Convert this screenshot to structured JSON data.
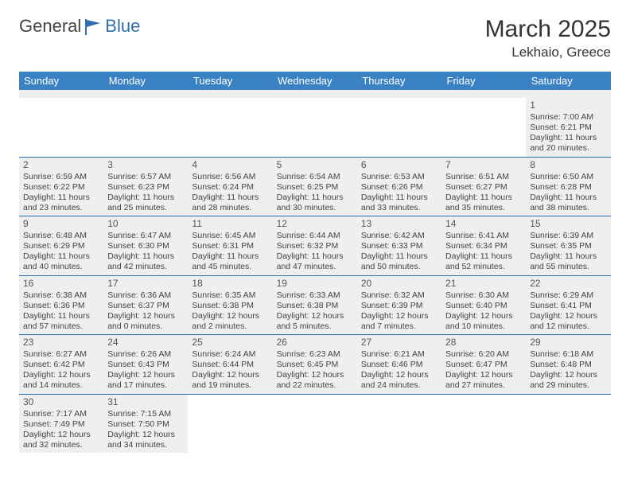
{
  "brand": {
    "part1": "General",
    "part2": "Blue"
  },
  "title": "March 2025",
  "location": "Lekhaio, Greece",
  "colors": {
    "header_bg": "#3b82c4",
    "header_text": "#ffffff",
    "cell_bg": "#efefef",
    "rule": "#2f6fb0",
    "brand_blue": "#2f6fb0"
  },
  "daynames": [
    "Sunday",
    "Monday",
    "Tuesday",
    "Wednesday",
    "Thursday",
    "Friday",
    "Saturday"
  ],
  "weeks": [
    [
      null,
      null,
      null,
      null,
      null,
      null,
      {
        "n": "1",
        "sr": "Sunrise: 7:00 AM",
        "ss": "Sunset: 6:21 PM",
        "d1": "Daylight: 11 hours",
        "d2": "and 20 minutes."
      }
    ],
    [
      {
        "n": "2",
        "sr": "Sunrise: 6:59 AM",
        "ss": "Sunset: 6:22 PM",
        "d1": "Daylight: 11 hours",
        "d2": "and 23 minutes."
      },
      {
        "n": "3",
        "sr": "Sunrise: 6:57 AM",
        "ss": "Sunset: 6:23 PM",
        "d1": "Daylight: 11 hours",
        "d2": "and 25 minutes."
      },
      {
        "n": "4",
        "sr": "Sunrise: 6:56 AM",
        "ss": "Sunset: 6:24 PM",
        "d1": "Daylight: 11 hours",
        "d2": "and 28 minutes."
      },
      {
        "n": "5",
        "sr": "Sunrise: 6:54 AM",
        "ss": "Sunset: 6:25 PM",
        "d1": "Daylight: 11 hours",
        "d2": "and 30 minutes."
      },
      {
        "n": "6",
        "sr": "Sunrise: 6:53 AM",
        "ss": "Sunset: 6:26 PM",
        "d1": "Daylight: 11 hours",
        "d2": "and 33 minutes."
      },
      {
        "n": "7",
        "sr": "Sunrise: 6:51 AM",
        "ss": "Sunset: 6:27 PM",
        "d1": "Daylight: 11 hours",
        "d2": "and 35 minutes."
      },
      {
        "n": "8",
        "sr": "Sunrise: 6:50 AM",
        "ss": "Sunset: 6:28 PM",
        "d1": "Daylight: 11 hours",
        "d2": "and 38 minutes."
      }
    ],
    [
      {
        "n": "9",
        "sr": "Sunrise: 6:48 AM",
        "ss": "Sunset: 6:29 PM",
        "d1": "Daylight: 11 hours",
        "d2": "and 40 minutes."
      },
      {
        "n": "10",
        "sr": "Sunrise: 6:47 AM",
        "ss": "Sunset: 6:30 PM",
        "d1": "Daylight: 11 hours",
        "d2": "and 42 minutes."
      },
      {
        "n": "11",
        "sr": "Sunrise: 6:45 AM",
        "ss": "Sunset: 6:31 PM",
        "d1": "Daylight: 11 hours",
        "d2": "and 45 minutes."
      },
      {
        "n": "12",
        "sr": "Sunrise: 6:44 AM",
        "ss": "Sunset: 6:32 PM",
        "d1": "Daylight: 11 hours",
        "d2": "and 47 minutes."
      },
      {
        "n": "13",
        "sr": "Sunrise: 6:42 AM",
        "ss": "Sunset: 6:33 PM",
        "d1": "Daylight: 11 hours",
        "d2": "and 50 minutes."
      },
      {
        "n": "14",
        "sr": "Sunrise: 6:41 AM",
        "ss": "Sunset: 6:34 PM",
        "d1": "Daylight: 11 hours",
        "d2": "and 52 minutes."
      },
      {
        "n": "15",
        "sr": "Sunrise: 6:39 AM",
        "ss": "Sunset: 6:35 PM",
        "d1": "Daylight: 11 hours",
        "d2": "and 55 minutes."
      }
    ],
    [
      {
        "n": "16",
        "sr": "Sunrise: 6:38 AM",
        "ss": "Sunset: 6:36 PM",
        "d1": "Daylight: 11 hours",
        "d2": "and 57 minutes."
      },
      {
        "n": "17",
        "sr": "Sunrise: 6:36 AM",
        "ss": "Sunset: 6:37 PM",
        "d1": "Daylight: 12 hours",
        "d2": "and 0 minutes."
      },
      {
        "n": "18",
        "sr": "Sunrise: 6:35 AM",
        "ss": "Sunset: 6:38 PM",
        "d1": "Daylight: 12 hours",
        "d2": "and 2 minutes."
      },
      {
        "n": "19",
        "sr": "Sunrise: 6:33 AM",
        "ss": "Sunset: 6:38 PM",
        "d1": "Daylight: 12 hours",
        "d2": "and 5 minutes."
      },
      {
        "n": "20",
        "sr": "Sunrise: 6:32 AM",
        "ss": "Sunset: 6:39 PM",
        "d1": "Daylight: 12 hours",
        "d2": "and 7 minutes."
      },
      {
        "n": "21",
        "sr": "Sunrise: 6:30 AM",
        "ss": "Sunset: 6:40 PM",
        "d1": "Daylight: 12 hours",
        "d2": "and 10 minutes."
      },
      {
        "n": "22",
        "sr": "Sunrise: 6:29 AM",
        "ss": "Sunset: 6:41 PM",
        "d1": "Daylight: 12 hours",
        "d2": "and 12 minutes."
      }
    ],
    [
      {
        "n": "23",
        "sr": "Sunrise: 6:27 AM",
        "ss": "Sunset: 6:42 PM",
        "d1": "Daylight: 12 hours",
        "d2": "and 14 minutes."
      },
      {
        "n": "24",
        "sr": "Sunrise: 6:26 AM",
        "ss": "Sunset: 6:43 PM",
        "d1": "Daylight: 12 hours",
        "d2": "and 17 minutes."
      },
      {
        "n": "25",
        "sr": "Sunrise: 6:24 AM",
        "ss": "Sunset: 6:44 PM",
        "d1": "Daylight: 12 hours",
        "d2": "and 19 minutes."
      },
      {
        "n": "26",
        "sr": "Sunrise: 6:23 AM",
        "ss": "Sunset: 6:45 PM",
        "d1": "Daylight: 12 hours",
        "d2": "and 22 minutes."
      },
      {
        "n": "27",
        "sr": "Sunrise: 6:21 AM",
        "ss": "Sunset: 6:46 PM",
        "d1": "Daylight: 12 hours",
        "d2": "and 24 minutes."
      },
      {
        "n": "28",
        "sr": "Sunrise: 6:20 AM",
        "ss": "Sunset: 6:47 PM",
        "d1": "Daylight: 12 hours",
        "d2": "and 27 minutes."
      },
      {
        "n": "29",
        "sr": "Sunrise: 6:18 AM",
        "ss": "Sunset: 6:48 PM",
        "d1": "Daylight: 12 hours",
        "d2": "and 29 minutes."
      }
    ],
    [
      {
        "n": "30",
        "sr": "Sunrise: 7:17 AM",
        "ss": "Sunset: 7:49 PM",
        "d1": "Daylight: 12 hours",
        "d2": "and 32 minutes."
      },
      {
        "n": "31",
        "sr": "Sunrise: 7:15 AM",
        "ss": "Sunset: 7:50 PM",
        "d1": "Daylight: 12 hours",
        "d2": "and 34 minutes."
      },
      null,
      null,
      null,
      null,
      null
    ]
  ]
}
